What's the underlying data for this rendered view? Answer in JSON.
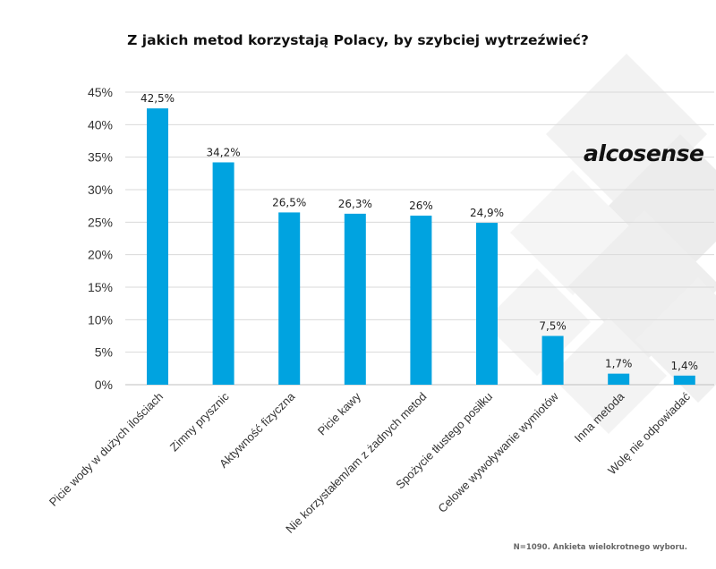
{
  "chart_data": {
    "type": "bar",
    "title": "Z jakich metod korzystają Polacy, by szybciej wytrzeźwieć?",
    "categories": [
      "Picie wody w dużych ilościach",
      "Zimny prysznic",
      "Aktywność fizyczna",
      "Picie kawy",
      "Nie korzystałem/am z żadnych metod",
      "Spożycie tłustego posiłku",
      "Celowe wywoływanie wymiotów",
      "Inna metoda",
      "Wolę nie odpowiadać"
    ],
    "values": [
      42.5,
      34.2,
      26.5,
      26.3,
      26,
      24.9,
      7.5,
      1.7,
      1.4
    ],
    "value_labels": [
      "42,5%",
      "34,2%",
      "26,5%",
      "26,3%",
      "26%",
      "24,9%",
      "7,5%",
      "1,7%",
      "1,4%"
    ],
    "yticks": [
      "0%",
      "5%",
      "10%",
      "15%",
      "20%",
      "25%",
      "30%",
      "35%",
      "40%",
      "45%"
    ],
    "ylim": [
      0,
      45
    ],
    "grid": true,
    "bar_color": "#00a3e0",
    "xlabel": "",
    "ylabel": ""
  },
  "logo_text": "alcosense",
  "footnote": "N=1090. Ankieta wielokrotnego wyboru."
}
